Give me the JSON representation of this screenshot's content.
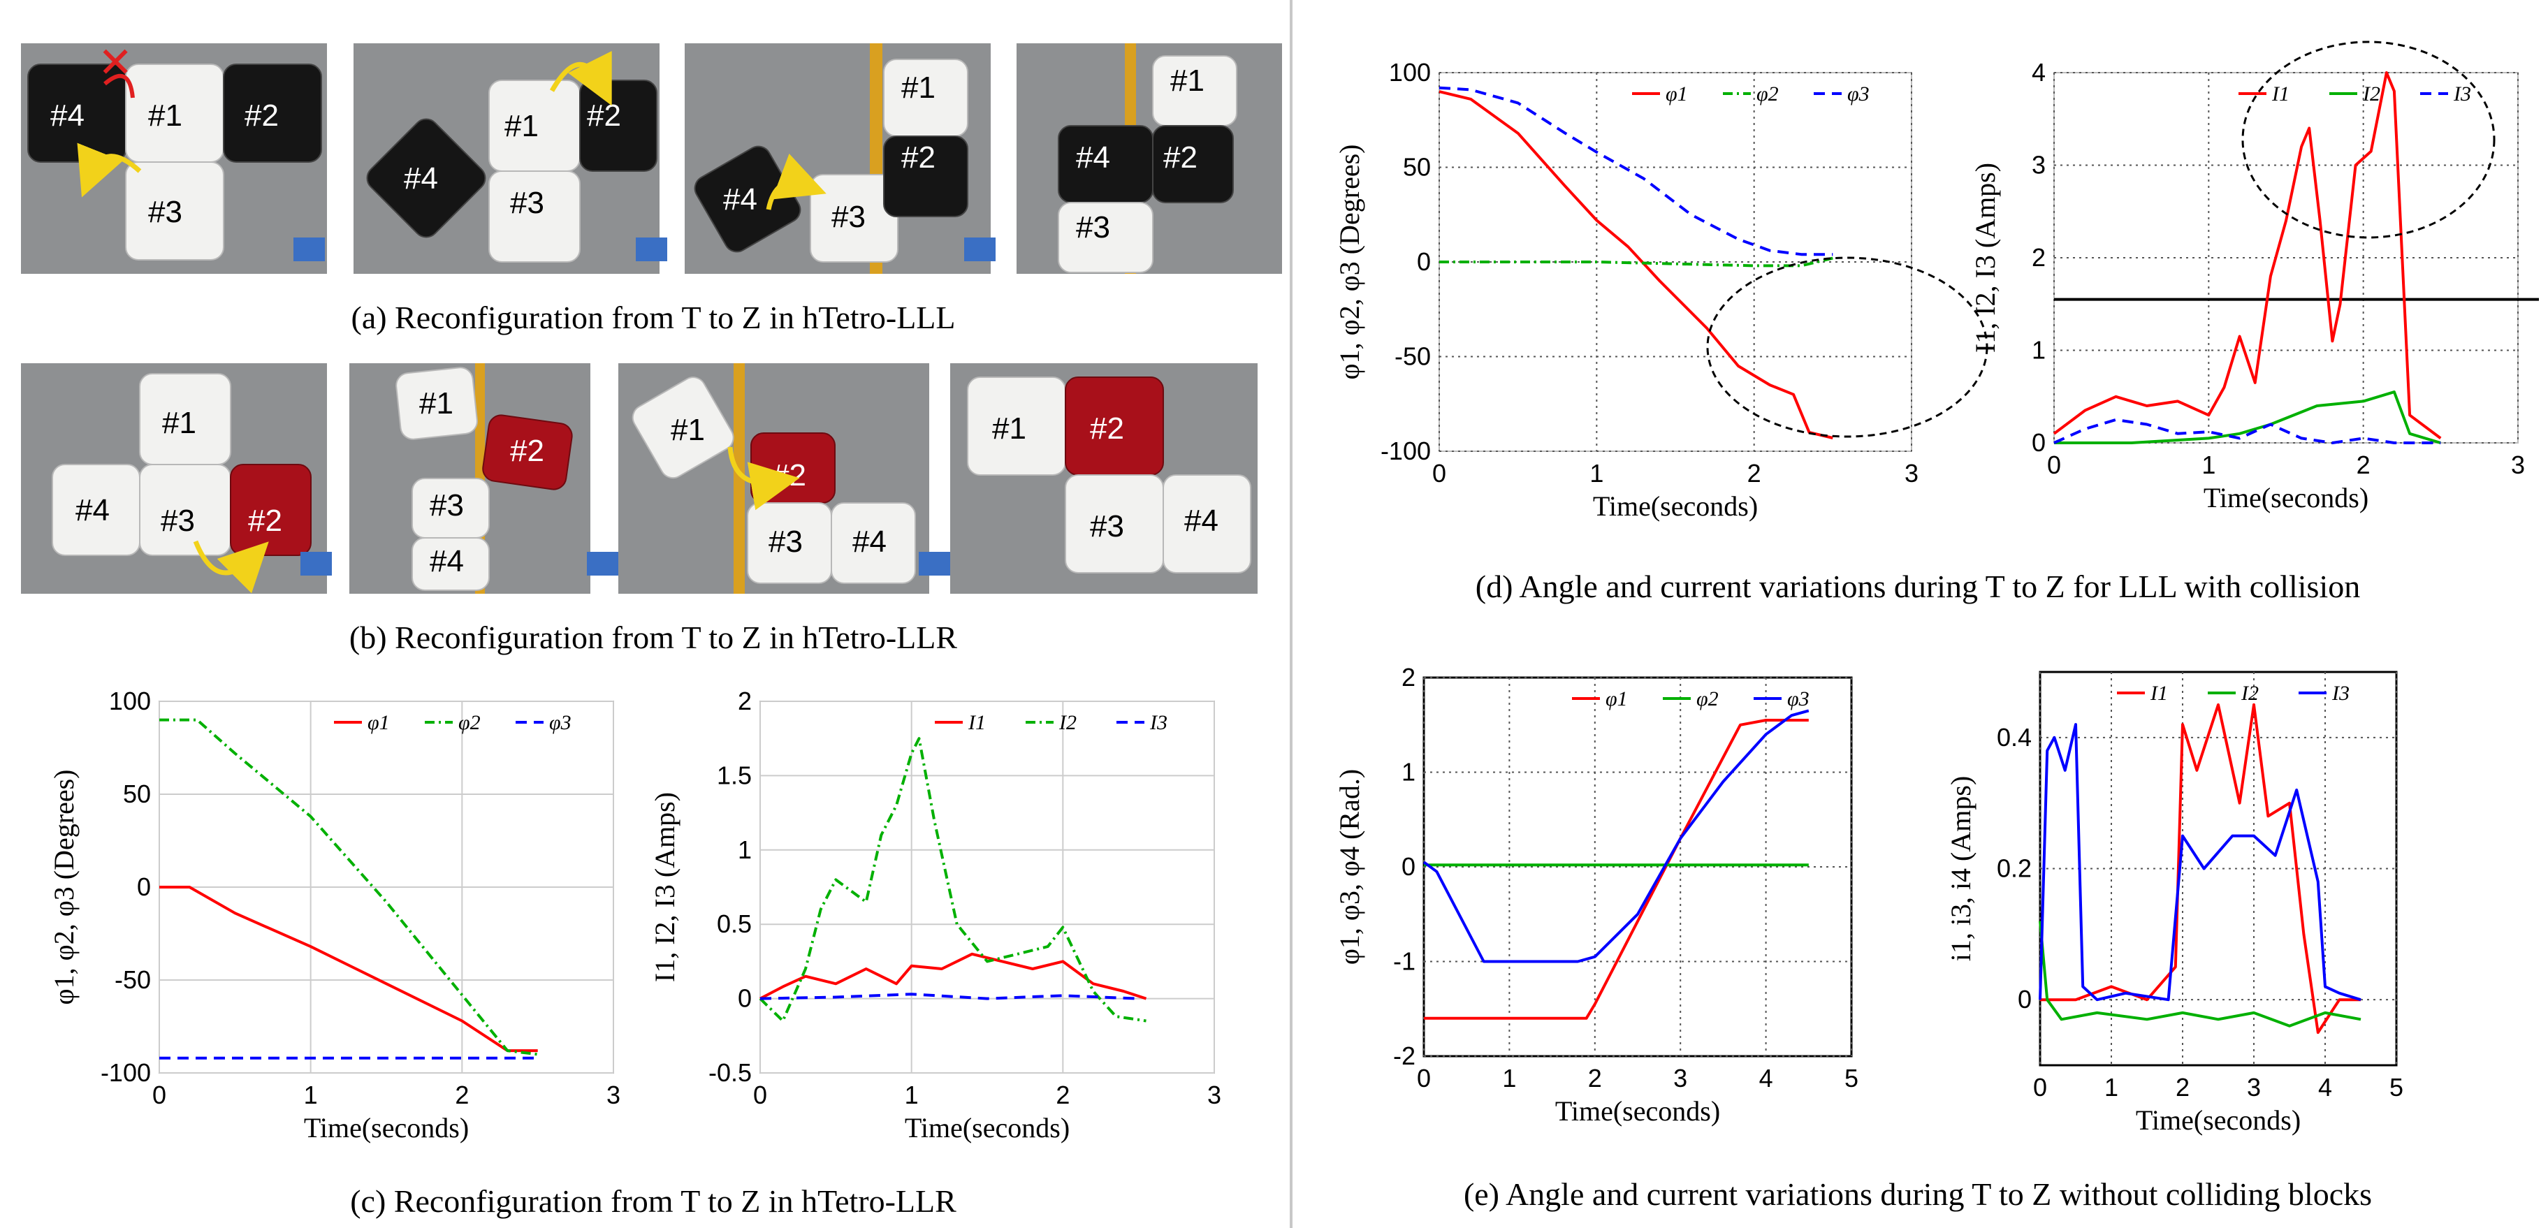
{
  "captions": {
    "a": "(a) Reconfiguration  from  T to  Z in  hTetro-LLL",
    "b": "(b) Reconfiguration  from  T to  Z in  hTetro-LLR",
    "c": "(c) Reconfiguration  from  T to  Z in  hTetro-LLR",
    "d": "(d) Angle and current variations during T to Z for LLL with collision",
    "e": "(e) Angle and current variations during T to Z without colliding blocks"
  },
  "photos": {
    "row_a": [
      {
        "tiles": [
          "#4",
          "#1",
          "#2",
          "#3"
        ]
      },
      {
        "tiles": [
          "#4",
          "#1",
          "#2",
          "#3"
        ]
      },
      {
        "tiles": [
          "#4",
          "#3",
          "#1",
          "#2"
        ]
      },
      {
        "tiles": [
          "#1",
          "#2",
          "#4",
          "#3"
        ]
      }
    ],
    "row_b": [
      {
        "tiles": [
          "#1",
          "#4",
          "#3",
          "#2"
        ]
      },
      {
        "tiles": [
          "#1",
          "#2",
          "#3",
          "#4"
        ]
      },
      {
        "tiles": [
          "#1",
          "#2",
          "#3",
          "#4"
        ]
      },
      {
        "tiles": [
          "#1",
          "#2",
          "#3",
          "#4"
        ]
      }
    ],
    "colors": {
      "white_tile": "#f2f2f0",
      "black_tile": "#151515",
      "red_tile": "#a8101a",
      "arrow_blue": "#3a6fc4",
      "rotation_arrow": "#f2d21a",
      "cross": "#e02020"
    }
  },
  "chart_data": [
    {
      "id": "c_angles",
      "type": "line",
      "xlabel": "Time(seconds)",
      "ylabel": "φ1, φ2, φ3 (Degrees)",
      "xlim": [
        0,
        3
      ],
      "ylim": [
        -100,
        100
      ],
      "xticks": [
        0,
        1,
        2,
        3
      ],
      "yticks": [
        -100,
        -50,
        0,
        50,
        100
      ],
      "xtick_labels": [
        "0",
        "1",
        "2",
        "3"
      ],
      "ytick_labels": [
        "-100",
        "-50",
        "0",
        "50",
        "100"
      ],
      "grid": true,
      "legend": "top-right",
      "series": [
        {
          "name": "φ1",
          "color": "#ff0000",
          "dash": "solid",
          "x": [
            0,
            0.2,
            0.5,
            1.0,
            1.5,
            2.0,
            2.3,
            2.5
          ],
          "y": [
            0,
            0,
            -14,
            -32,
            -52,
            -72,
            -88,
            -88
          ]
        },
        {
          "name": "φ2",
          "color": "#00b000",
          "dash": "dashdot",
          "x": [
            0,
            0.25,
            0.5,
            1.0,
            1.5,
            2.0,
            2.3,
            2.5
          ],
          "y": [
            90,
            90,
            72,
            38,
            -8,
            -58,
            -88,
            -90
          ]
        },
        {
          "name": "φ3",
          "color": "#0000ff",
          "dash": "dashed",
          "x": [
            0,
            2.5
          ],
          "y": [
            -92,
            -92
          ]
        }
      ]
    },
    {
      "id": "c_currents",
      "type": "line",
      "xlabel": "Time(seconds)",
      "ylabel": "I1, I2, I3 (Amps)",
      "xlim": [
        0,
        3
      ],
      "ylim": [
        -0.5,
        2
      ],
      "xticks": [
        0,
        1,
        2,
        3
      ],
      "yticks": [
        -0.5,
        0,
        0.5,
        1,
        1.5,
        2
      ],
      "xtick_labels": [
        "0",
        "1",
        "2",
        "3"
      ],
      "ytick_labels": [
        "-0.5",
        "0",
        "0.5",
        "1",
        "1.5",
        "2"
      ],
      "grid": true,
      "legend": "top-right",
      "series": [
        {
          "name": "I1",
          "color": "#ff0000",
          "dash": "solid",
          "x": [
            0,
            0.15,
            0.3,
            0.5,
            0.7,
            0.9,
            1.0,
            1.2,
            1.4,
            1.6,
            1.8,
            2.0,
            2.2,
            2.4,
            2.55
          ],
          "y": [
            0,
            0.08,
            0.15,
            0.1,
            0.2,
            0.1,
            0.22,
            0.2,
            0.3,
            0.25,
            0.2,
            0.25,
            0.1,
            0.05,
            0
          ]
        },
        {
          "name": "I2",
          "color": "#00b000",
          "dash": "dashdot",
          "x": [
            0,
            0.15,
            0.3,
            0.4,
            0.5,
            0.7,
            0.8,
            0.9,
            1.0,
            1.05,
            1.15,
            1.3,
            1.5,
            1.7,
            1.9,
            2.0,
            2.2,
            2.35,
            2.55
          ],
          "y": [
            0,
            -0.15,
            0.2,
            0.6,
            0.8,
            0.65,
            1.1,
            1.3,
            1.65,
            1.75,
            1.2,
            0.5,
            0.25,
            0.3,
            0.35,
            0.48,
            0.05,
            -0.12,
            -0.15
          ]
        },
        {
          "name": "I3",
          "color": "#0000ff",
          "dash": "dashed",
          "x": [
            0,
            0.5,
            1.0,
            1.5,
            2.0,
            2.5
          ],
          "y": [
            0,
            0.01,
            0.03,
            0.0,
            0.02,
            0.0
          ]
        }
      ]
    },
    {
      "id": "d_angles",
      "type": "line",
      "xlabel": "Time(seconds)",
      "ylabel": "φ1, φ2, φ3 (Degrees)",
      "xlim": [
        0,
        3
      ],
      "ylim": [
        -100,
        100
      ],
      "xticks": [
        0,
        1,
        2,
        3
      ],
      "yticks": [
        -100,
        -50,
        0,
        50,
        100
      ],
      "xtick_labels": [
        "0",
        "1",
        "2",
        "3"
      ],
      "ytick_labels": [
        "-100",
        "-50",
        "0",
        "50",
        "100"
      ],
      "grid": true,
      "legend": "top-right",
      "annotation": "dashed ellipse around collision region (t 1.7–3.0)",
      "series": [
        {
          "name": "φ1",
          "color": "#ff0000",
          "dash": "solid",
          "x": [
            0,
            0.2,
            0.5,
            0.8,
            1.0,
            1.2,
            1.4,
            1.7,
            1.9,
            2.1,
            2.25,
            2.35,
            2.5
          ],
          "y": [
            90,
            86,
            68,
            40,
            22,
            8,
            -10,
            -35,
            -55,
            -65,
            -70,
            -90,
            -93
          ]
        },
        {
          "name": "φ2",
          "color": "#00b000",
          "dash": "dashdot",
          "x": [
            0,
            1.0,
            2.0,
            2.3,
            2.5
          ],
          "y": [
            0,
            0,
            -2,
            -2,
            2
          ]
        },
        {
          "name": "φ3",
          "color": "#0000ff",
          "dash": "dashed",
          "x": [
            0,
            0.2,
            0.5,
            0.8,
            1.0,
            1.3,
            1.6,
            1.9,
            2.1,
            2.3,
            2.5
          ],
          "y": [
            92,
            91,
            84,
            68,
            58,
            44,
            25,
            12,
            6,
            4,
            4
          ]
        }
      ]
    },
    {
      "id": "d_currents",
      "type": "line",
      "xlabel": "Time(seconds)",
      "ylabel": "I1, I2, I3 (Amps)",
      "xlim": [
        0,
        3
      ],
      "ylim": [
        0,
        4
      ],
      "xticks": [
        0,
        1,
        2,
        3
      ],
      "yticks": [
        0,
        1,
        2,
        3,
        4
      ],
      "xtick_labels": [
        "0",
        "1",
        "2",
        "3"
      ],
      "ytick_labels": [
        "0",
        "1",
        "2",
        "3",
        "4"
      ],
      "grid": true,
      "legend": "top-right",
      "threshold_line": 1.55,
      "annotation": "dashed ellipse around current spikes",
      "series": [
        {
          "name": "I1",
          "color": "#ff0000",
          "dash": "solid",
          "x": [
            0,
            0.2,
            0.4,
            0.6,
            0.8,
            1.0,
            1.1,
            1.2,
            1.3,
            1.4,
            1.5,
            1.6,
            1.65,
            1.72,
            1.8,
            1.85,
            1.95,
            2.05,
            2.15,
            2.2,
            2.3,
            2.5
          ],
          "y": [
            0.1,
            0.35,
            0.5,
            0.4,
            0.45,
            0.3,
            0.6,
            1.15,
            0.65,
            1.8,
            2.4,
            3.2,
            3.4,
            2.4,
            1.1,
            1.5,
            3.0,
            3.15,
            4.0,
            3.8,
            0.3,
            0.05
          ]
        },
        {
          "name": "I2",
          "color": "#00b000",
          "dash": "solid",
          "x": [
            0,
            0.5,
            1.0,
            1.2,
            1.4,
            1.7,
            2.0,
            2.2,
            2.3,
            2.5
          ],
          "y": [
            0,
            0,
            0.05,
            0.1,
            0.2,
            0.4,
            0.45,
            0.55,
            0.1,
            0
          ]
        },
        {
          "name": "I3",
          "color": "#0000ff",
          "dash": "dashed",
          "x": [
            0,
            0.2,
            0.4,
            0.6,
            0.8,
            1.0,
            1.2,
            1.4,
            1.6,
            1.8,
            2.0,
            2.2,
            2.5
          ],
          "y": [
            0,
            0.15,
            0.25,
            0.2,
            0.1,
            0.12,
            0.05,
            0.2,
            0.05,
            0.0,
            0.05,
            0.0,
            0.0
          ]
        }
      ]
    },
    {
      "id": "e_angles",
      "type": "line",
      "xlabel": "Time(seconds)",
      "ylabel": "φ1, φ3, φ4 (Rad.)",
      "xlim": [
        0,
        5
      ],
      "ylim": [
        -2,
        2
      ],
      "xticks": [
        0,
        1,
        2,
        3,
        4,
        5
      ],
      "yticks": [
        -2,
        -1,
        0,
        1,
        2
      ],
      "xtick_labels": [
        "0",
        "1",
        "2",
        "3",
        "4",
        "5"
      ],
      "ytick_labels": [
        "-2",
        "-1",
        "0",
        "1",
        "2"
      ],
      "grid": true,
      "legend": "top-right",
      "series": [
        {
          "name": "φ1",
          "color": "#ff0000",
          "dash": "solid",
          "x": [
            0,
            1.9,
            2.0,
            3.0,
            3.7,
            4.0,
            4.5
          ],
          "y": [
            -1.6,
            -1.6,
            -1.45,
            0.3,
            1.5,
            1.55,
            1.55
          ]
        },
        {
          "name": "φ2",
          "color": "#00b000",
          "dash": "solid",
          "x": [
            0,
            4.5
          ],
          "y": [
            0.02,
            0.02
          ]
        },
        {
          "name": "φ3",
          "color": "#0000ff",
          "dash": "solid",
          "x": [
            0,
            0.15,
            0.7,
            1.8,
            2.0,
            2.5,
            3.0,
            3.5,
            4.0,
            4.3,
            4.5
          ],
          "y": [
            0.05,
            -0.05,
            -1.0,
            -1.0,
            -0.95,
            -0.5,
            0.3,
            0.9,
            1.4,
            1.6,
            1.65
          ]
        }
      ]
    },
    {
      "id": "e_currents",
      "type": "line",
      "xlabel": "Time(seconds)",
      "ylabel": "i1, i3, i4 (Amps)",
      "xlim": [
        0,
        5
      ],
      "ylim": [
        -0.1,
        0.5
      ],
      "xticks": [
        0,
        1,
        2,
        3,
        4,
        5
      ],
      "yticks": [
        0,
        0.2,
        0.4
      ],
      "xtick_labels": [
        "0",
        "1",
        "2",
        "3",
        "4",
        "5"
      ],
      "ytick_labels": [
        "0",
        "0.2",
        "0.4"
      ],
      "grid": true,
      "legend": "top-right",
      "series": [
        {
          "name": "I1",
          "color": "#ff0000",
          "dash": "solid",
          "x": [
            0,
            0.5,
            1.0,
            1.5,
            1.9,
            2.0,
            2.2,
            2.5,
            2.8,
            3.0,
            3.2,
            3.5,
            3.7,
            3.9,
            4.2,
            4.5
          ],
          "y": [
            0,
            0,
            0.02,
            0,
            0.05,
            0.42,
            0.35,
            0.45,
            0.3,
            0.45,
            0.28,
            0.3,
            0.1,
            -0.05,
            0,
            0
          ]
        },
        {
          "name": "I2",
          "color": "#00b000",
          "dash": "solid",
          "x": [
            0,
            0.1,
            0.3,
            0.8,
            1.5,
            2.0,
            2.5,
            3.0,
            3.5,
            4.0,
            4.5
          ],
          "y": [
            0.12,
            0.0,
            -0.03,
            -0.02,
            -0.03,
            -0.02,
            -0.03,
            -0.02,
            -0.04,
            -0.02,
            -0.03
          ]
        },
        {
          "name": "I3",
          "color": "#0000ff",
          "dash": "solid",
          "x": [
            0,
            0.1,
            0.2,
            0.35,
            0.5,
            0.6,
            0.8,
            1.2,
            1.8,
            2.0,
            2.3,
            2.7,
            3.0,
            3.3,
            3.6,
            3.9,
            4.0,
            4.2,
            4.5
          ],
          "y": [
            0,
            0.38,
            0.4,
            0.35,
            0.42,
            0.02,
            0.0,
            0.01,
            0.0,
            0.25,
            0.2,
            0.25,
            0.25,
            0.22,
            0.32,
            0.18,
            0.02,
            0.01,
            0.0
          ]
        }
      ]
    }
  ]
}
